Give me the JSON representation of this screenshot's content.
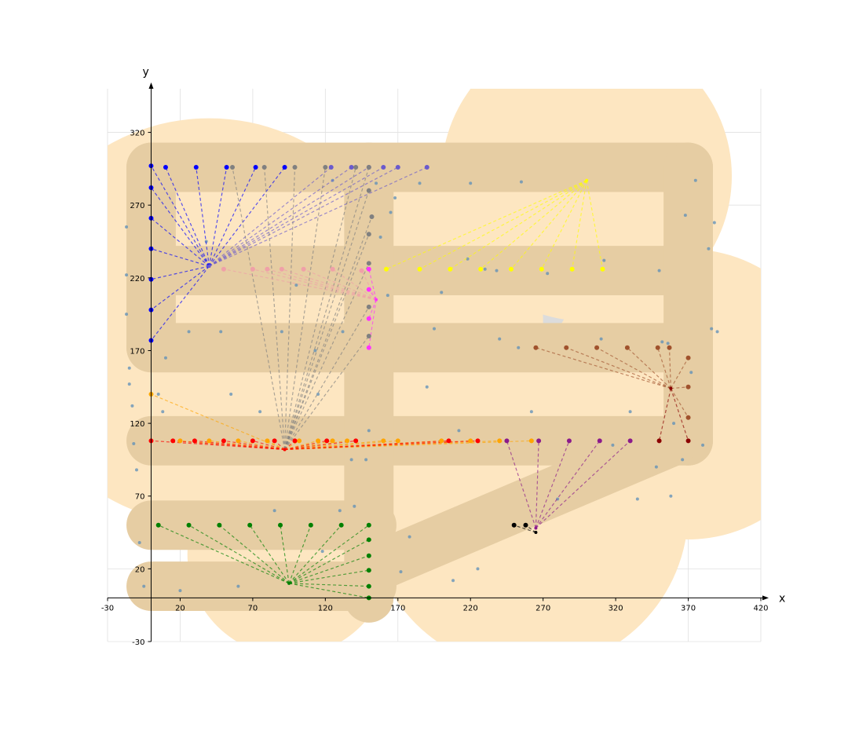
{
  "chart_data": {
    "type": "scatter",
    "title": "",
    "xlabel": "x",
    "ylabel": "y",
    "xlim": [
      -30,
      420
    ],
    "ylim": [
      -30,
      350
    ],
    "xticks": [
      -30,
      20,
      70,
      120,
      170,
      220,
      270,
      320,
      370,
      420
    ],
    "yticks": [
      -30,
      20,
      70,
      120,
      170,
      220,
      270,
      320
    ],
    "grid": true,
    "colors": {
      "tan_zone": "#fde6c1",
      "road": "#e6cda3",
      "grey_zone": "#dcdcdc",
      "background_points": "#5b8db8"
    },
    "zones": {
      "tan_circles": [
        {
          "cx": 40,
          "cy": 190,
          "r": 140
        },
        {
          "cx": 160,
          "cy": 190,
          "r": 110
        },
        {
          "cx": 300,
          "cy": 290,
          "r": 100
        },
        {
          "cx": 370,
          "cy": 140,
          "r": 100
        },
        {
          "cx": 260,
          "cy": 60,
          "r": 110
        },
        {
          "cx": 95,
          "cy": 30,
          "r": 70
        },
        {
          "cx": 190,
          "cy": 90,
          "r": 90
        }
      ],
      "grey_circles": [
        {
          "cx": 150,
          "cy": 295,
          "r": 18
        },
        {
          "cx": 250,
          "cy": 170,
          "r": 45
        },
        {
          "cx": 0,
          "cy": 110,
          "r": 22
        }
      ]
    },
    "roads": {
      "width": 17,
      "segments": [
        [
          [
            0,
            296
          ],
          [
            370,
            296
          ]
        ],
        [
          [
            0,
            225
          ],
          [
            370,
            225
          ]
        ],
        [
          [
            0,
            172
          ],
          [
            370,
            172
          ]
        ],
        [
          [
            0,
            108
          ],
          [
            370,
            108
          ]
        ],
        [
          [
            0,
            50
          ],
          [
            152,
            50
          ]
        ],
        [
          [
            0,
            8
          ],
          [
            152,
            8
          ]
        ],
        [
          [
            0,
            296
          ],
          [
            0,
            172
          ]
        ],
        [
          [
            370,
            296
          ],
          [
            370,
            108
          ]
        ],
        [
          [
            150,
            296
          ],
          [
            150,
            0
          ]
        ],
        [
          [
            152,
            20
          ],
          [
            360,
            108
          ]
        ]
      ]
    },
    "background_points": {
      "x": [
        -17,
        -17,
        -17,
        -15,
        -15,
        -13,
        -12,
        -10,
        -8,
        -5,
        5,
        8,
        10,
        20,
        26,
        38,
        48,
        55,
        60,
        75,
        85,
        90,
        100,
        113,
        115,
        118,
        125,
        130,
        132,
        138,
        140,
        148,
        150,
        155,
        158,
        163,
        165,
        168,
        172,
        178,
        185,
        190,
        195,
        200,
        208,
        212,
        218,
        220,
        225,
        230,
        238,
        240,
        253,
        255,
        262,
        273,
        280,
        310,
        312,
        318,
        330,
        335,
        348,
        350,
        352,
        356,
        358,
        360,
        366,
        368,
        372,
        375,
        380,
        384,
        386,
        388,
        390
      ],
      "y": [
        255,
        222,
        195,
        158,
        147,
        132,
        106,
        88,
        38,
        8,
        140,
        128,
        165,
        5,
        183,
        245,
        183,
        140,
        8,
        128,
        60,
        183,
        215,
        170,
        140,
        32,
        287,
        60,
        183,
        95,
        63,
        95,
        115,
        285,
        248,
        208,
        265,
        275,
        18,
        42,
        285,
        145,
        185,
        210,
        12,
        115,
        233,
        285,
        20,
        226,
        225,
        178,
        172,
        286,
        128,
        223,
        68,
        178,
        232,
        105,
        128,
        68,
        90,
        225,
        176,
        175,
        70,
        120,
        95,
        263,
        155,
        287,
        105,
        240,
        185,
        258,
        183
      ]
    },
    "groups": [
      {
        "name": "blue",
        "color": "#0000ff",
        "hub": [
          40,
          228
        ],
        "points": [
          [
            0,
            297
          ],
          [
            0,
            282
          ],
          [
            0,
            261
          ],
          [
            0,
            240
          ],
          [
            0,
            219
          ],
          [
            0,
            198
          ],
          [
            0,
            177
          ],
          [
            10,
            296
          ],
          [
            31,
            296
          ],
          [
            52,
            296
          ],
          [
            72,
            296
          ],
          [
            92,
            296
          ]
        ]
      },
      {
        "name": "slateblue",
        "color": "#6a5acd",
        "hub": [
          40,
          228
        ],
        "points": [
          [
            124,
            296
          ],
          [
            138,
            296
          ],
          [
            150,
            296
          ],
          [
            160,
            296
          ],
          [
            170,
            296
          ],
          [
            190,
            296
          ]
        ]
      },
      {
        "name": "grey",
        "color": "#808080",
        "hub": [
          92,
          102
        ],
        "points": [
          [
            56,
            296
          ],
          [
            78,
            296
          ],
          [
            99,
            296
          ],
          [
            120,
            296
          ],
          [
            141,
            296
          ],
          [
            150,
            296
          ],
          [
            150,
            280
          ],
          [
            152,
            262
          ],
          [
            150,
            250
          ],
          [
            150,
            230
          ],
          [
            150,
            200
          ],
          [
            150,
            180
          ]
        ]
      },
      {
        "name": "pink",
        "color": "#f0a0a8",
        "hub": [
          155,
          205
        ],
        "points": [
          [
            50,
            226
          ],
          [
            70,
            226
          ],
          [
            80,
            226
          ],
          [
            90,
            226
          ],
          [
            105,
            226
          ],
          [
            125,
            226
          ],
          [
            145,
            225
          ]
        ]
      },
      {
        "name": "magenta",
        "color": "#ff33ff",
        "hub": [
          155,
          205
        ],
        "points": [
          [
            150,
            226
          ],
          [
            150,
            212
          ],
          [
            150,
            192
          ],
          [
            150,
            172
          ]
        ]
      },
      {
        "name": "yellow",
        "color": "#ffff00",
        "hub": [
          300,
          287
        ],
        "points": [
          [
            162,
            226
          ],
          [
            185,
            226
          ],
          [
            206,
            226
          ],
          [
            227,
            226
          ],
          [
            248,
            226
          ],
          [
            269,
            226
          ],
          [
            290,
            226
          ],
          [
            311,
            226
          ]
        ]
      },
      {
        "name": "sienna",
        "color": "#a0522d",
        "hub": [
          358,
          144
        ],
        "points": [
          [
            265,
            172
          ],
          [
            286,
            172
          ],
          [
            307,
            172
          ],
          [
            328,
            172
          ],
          [
            349,
            172
          ],
          [
            357,
            172
          ],
          [
            370,
            165
          ],
          [
            370,
            145
          ],
          [
            370,
            124
          ]
        ]
      },
      {
        "name": "darkred",
        "color": "#8b0000",
        "hub": [
          358,
          144
        ],
        "points": [
          [
            350,
            108
          ],
          [
            370,
            108
          ]
        ]
      },
      {
        "name": "orange",
        "color": "#ffa500",
        "hub": [
          92,
          102
        ],
        "points": [
          [
            0,
            140
          ],
          [
            20,
            108
          ],
          [
            40,
            108
          ],
          [
            60,
            108
          ],
          [
            80,
            108
          ],
          [
            102,
            108
          ],
          [
            115,
            108
          ],
          [
            125,
            108
          ],
          [
            135,
            108
          ],
          [
            160,
            108
          ],
          [
            170,
            108
          ],
          [
            200,
            108
          ],
          [
            220,
            108
          ],
          [
            240,
            108
          ],
          [
            262,
            108
          ]
        ]
      },
      {
        "name": "red",
        "color": "#ff0000",
        "hub": [
          92,
          102
        ],
        "points": [
          [
            0,
            108
          ],
          [
            15,
            108
          ],
          [
            30,
            108
          ],
          [
            50,
            108
          ],
          [
            70,
            108
          ],
          [
            85,
            108
          ],
          [
            99,
            108
          ],
          [
            121,
            108
          ],
          [
            141,
            108
          ],
          [
            205,
            108
          ],
          [
            225,
            108
          ]
        ]
      },
      {
        "name": "purple",
        "color": "#8b1a8b",
        "hub": [
          265,
          48
        ],
        "points": [
          [
            245,
            108
          ],
          [
            267,
            108
          ],
          [
            288,
            108
          ],
          [
            309,
            108
          ],
          [
            330,
            108
          ]
        ]
      },
      {
        "name": "green",
        "color": "#008000",
        "hub": [
          95,
          10
        ],
        "points": [
          [
            5,
            50
          ],
          [
            26,
            50
          ],
          [
            47,
            50
          ],
          [
            68,
            50
          ],
          [
            89,
            50
          ],
          [
            110,
            50
          ],
          [
            131,
            50
          ],
          [
            150,
            50
          ],
          [
            150,
            40
          ],
          [
            150,
            29
          ],
          [
            150,
            19
          ],
          [
            150,
            8
          ],
          [
            150,
            0
          ]
        ]
      },
      {
        "name": "black",
        "color": "#000000",
        "hub": [
          265,
          45
        ],
        "points": [
          [
            250,
            50
          ],
          [
            258,
            50
          ]
        ]
      }
    ]
  }
}
